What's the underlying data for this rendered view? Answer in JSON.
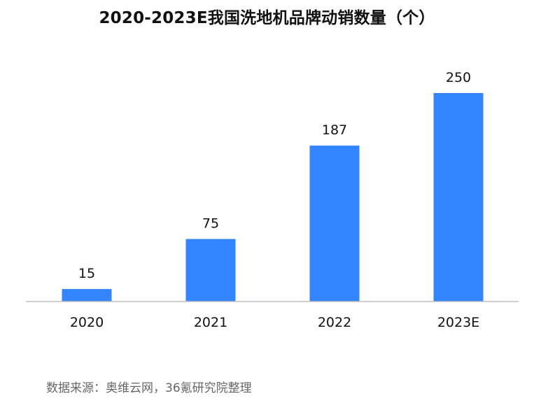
{
  "chart_data": {
    "type": "bar",
    "title": "2020-2023E我国洗地机品牌动销数量（个）",
    "categories": [
      "2020",
      "2021",
      "2022",
      "2023E"
    ],
    "values": [
      15,
      75,
      187,
      250
    ],
    "xlabel": "",
    "ylabel": "",
    "ylim": [
      0,
      250
    ],
    "grid": false,
    "legend": "none",
    "bar_color": "#3385FF",
    "axis_color": "#BFBFBF"
  },
  "source": "数据来源：奥维云网，36氪研究院整理"
}
